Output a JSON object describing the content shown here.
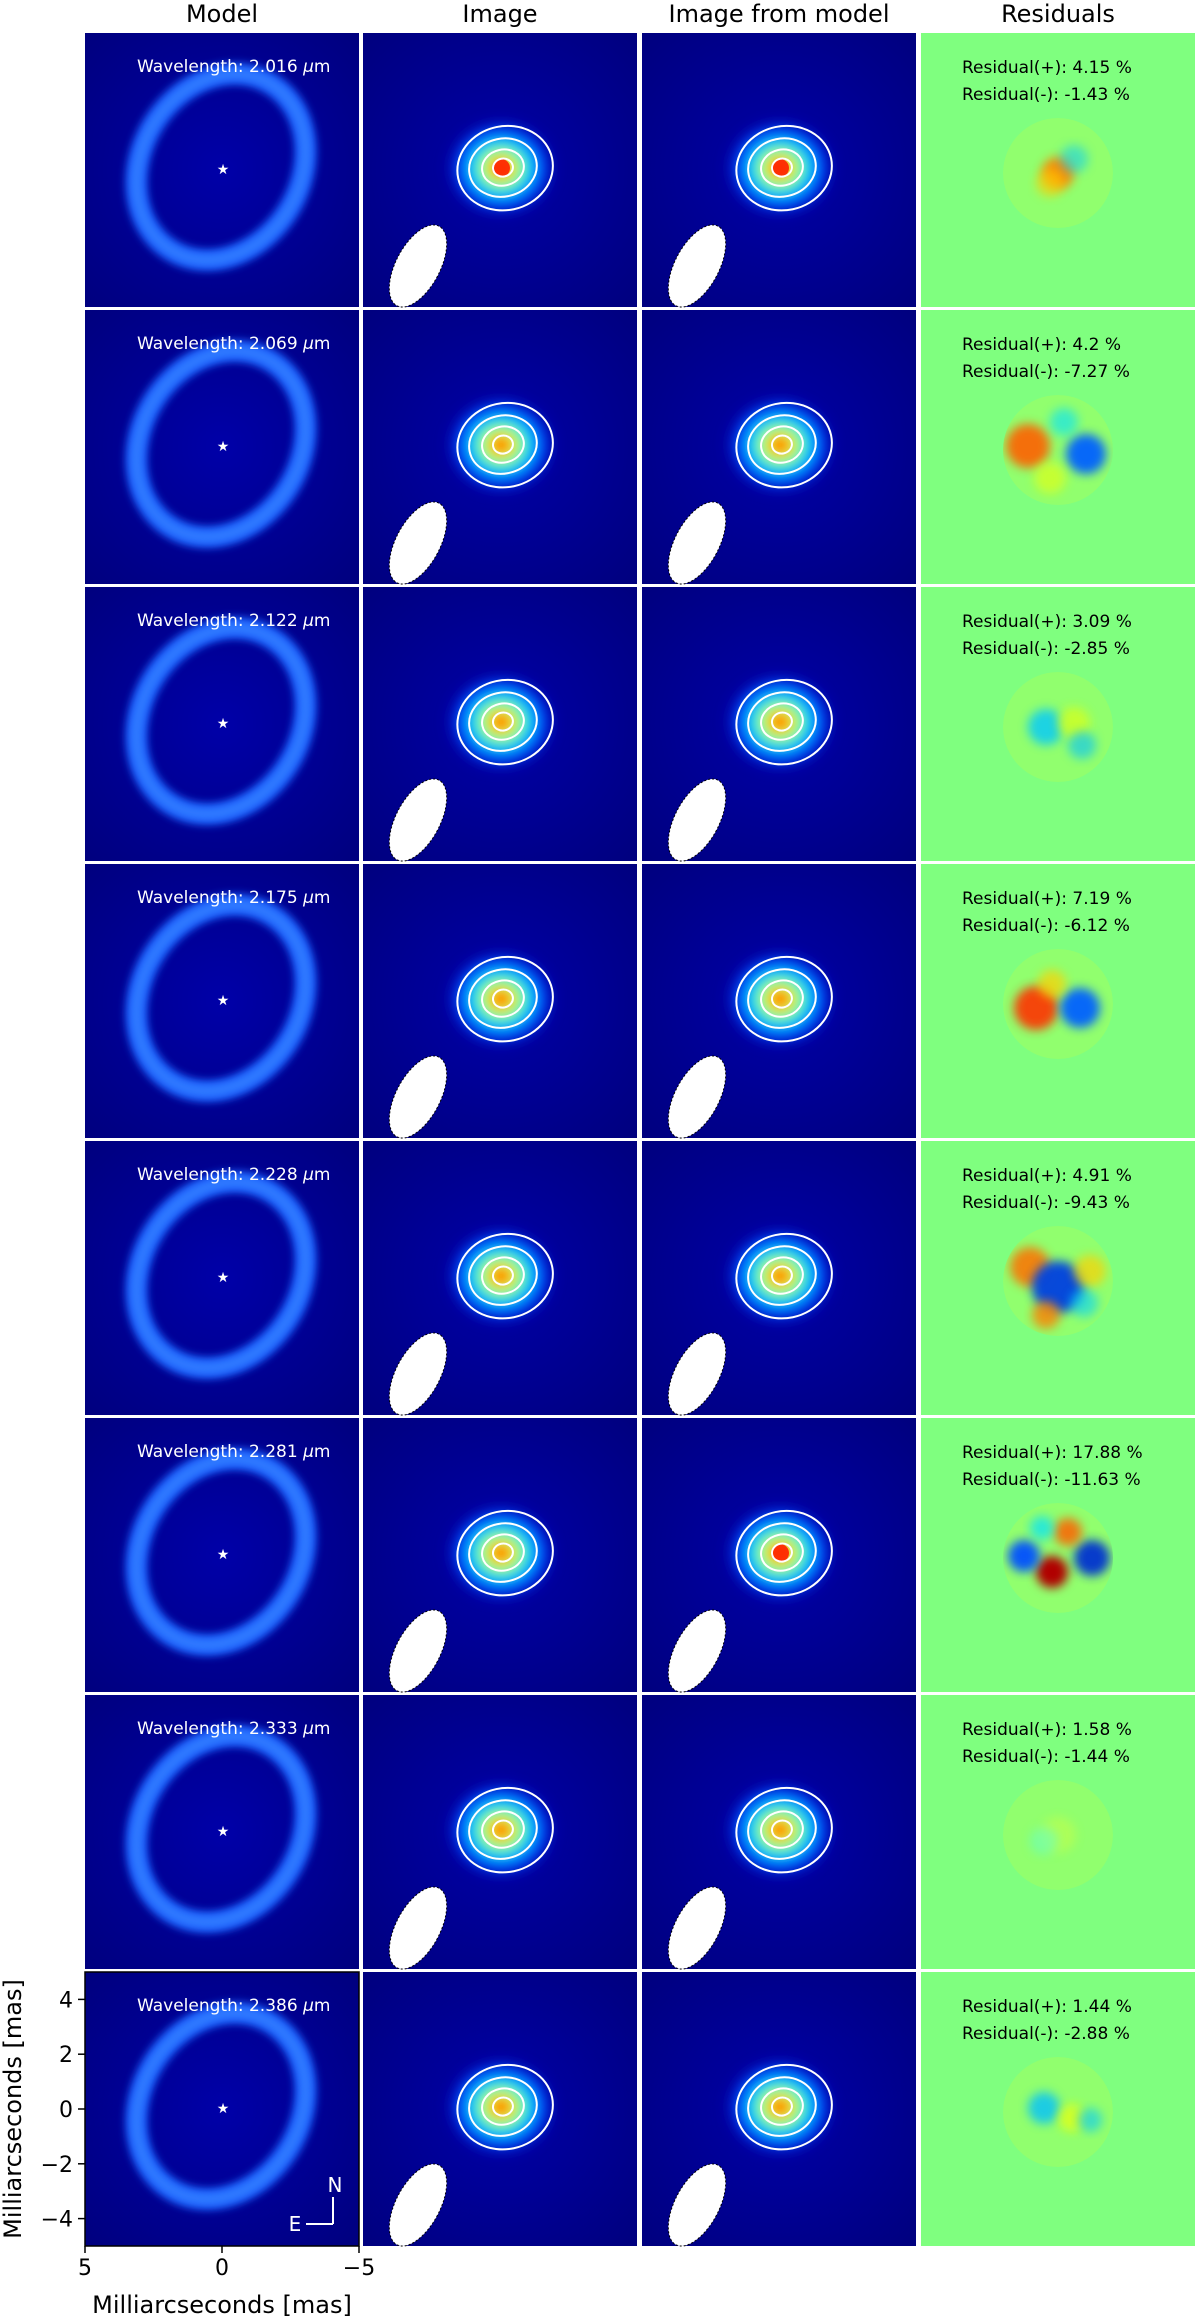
{
  "chart_data": {
    "type": "image-grid",
    "columns": [
      "Model",
      "Image",
      "Image from model",
      "Residuals"
    ],
    "wavelength_prefix": "Wavelength: ",
    "wavelength_unit": "μm",
    "residual_plus_prefix": "Residual(+): ",
    "residual_minus_prefix": "Residual(-): ",
    "percent_suffix": " %",
    "rows": [
      {
        "wavelength": "2.016",
        "residual_plus": "4.15",
        "residual_minus": "-1.43"
      },
      {
        "wavelength": "2.069",
        "residual_plus": "4.2",
        "residual_minus": "-7.27"
      },
      {
        "wavelength": "2.122",
        "residual_plus": "3.09",
        "residual_minus": "-2.85"
      },
      {
        "wavelength": "2.175",
        "residual_plus": "7.19",
        "residual_minus": "-6.12"
      },
      {
        "wavelength": "2.228",
        "residual_plus": "4.91",
        "residual_minus": "-9.43"
      },
      {
        "wavelength": "2.281",
        "residual_plus": "17.88",
        "residual_minus": "-11.63"
      },
      {
        "wavelength": "2.333",
        "residual_plus": "1.58",
        "residual_minus": "-1.44"
      },
      {
        "wavelength": "2.386",
        "residual_plus": "1.44",
        "residual_minus": "-2.88"
      }
    ],
    "xlabel": "Milliarcseconds [mas]",
    "ylabel": "Milliarcseconds [mas]",
    "xlim": [
      5,
      -5
    ],
    "ylim": [
      -5,
      5
    ],
    "xticks": [
      5,
      0,
      -5
    ],
    "yticks": [
      4,
      2,
      0,
      -2,
      -4
    ],
    "xtick_labels": [
      "5",
      "0",
      "−5"
    ],
    "ytick_labels": [
      "4",
      "2",
      "0",
      "−2",
      "−4"
    ],
    "compass": {
      "north": "N",
      "east": "E"
    },
    "colors": {
      "background": "#000080",
      "residual_background": "#7fff7f",
      "contour": "#ffffff"
    }
  }
}
